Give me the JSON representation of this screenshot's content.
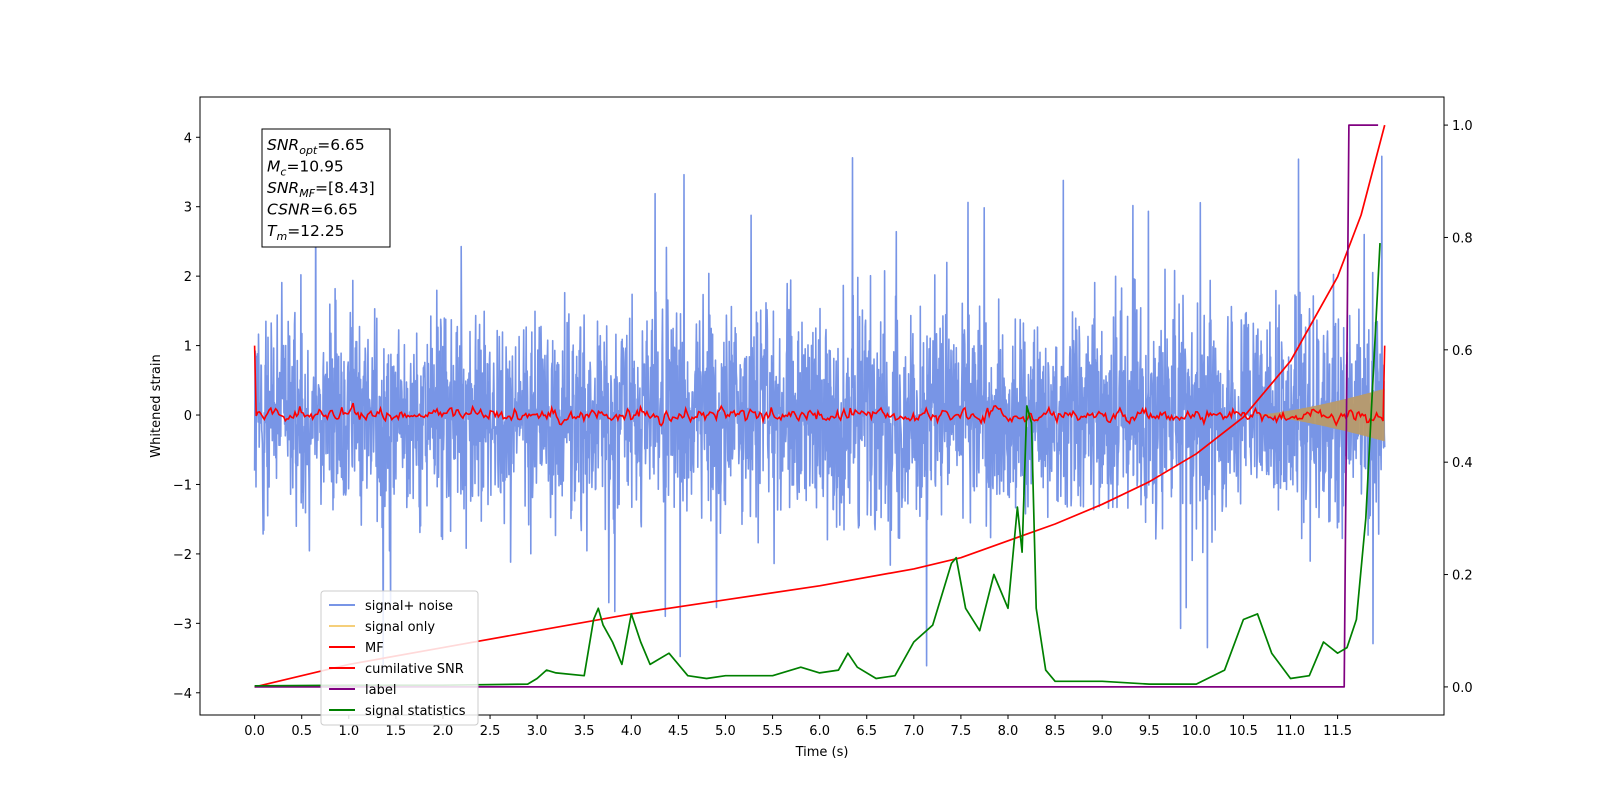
{
  "chart_data": {
    "type": "line",
    "xlabel": "Time (s)",
    "ylabel": "Whitened strain",
    "xlim": [
      -0.58,
      12.63
    ],
    "ylim": [
      -4.32,
      4.58
    ],
    "ylim_right": [
      -0.05,
      1.05
    ],
    "x_ticks": [
      "0.0",
      "0.5",
      "1.0",
      "1.5",
      "2.0",
      "2.5",
      "3.0",
      "3.5",
      "4.0",
      "4.5",
      "5.0",
      "5.5",
      "6.0",
      "6.5",
      "7.0",
      "7.5",
      "8.0",
      "8.5",
      "9.0",
      "9.5",
      "10.0",
      "10.5",
      "11.0",
      "11.5"
    ],
    "y_ticks": [
      "4",
      "3",
      "2",
      "1",
      "0",
      "−1",
      "−2",
      "−3",
      "−4"
    ],
    "y_ticks_right": [
      "1.0",
      "0.8",
      "0.6",
      "0.4",
      "0.2",
      "0.0"
    ],
    "legend_position": "lower-left",
    "annotation": {
      "lines": [
        {
          "sym": "SNR",
          "sub": "opt",
          "value": "=6.65"
        },
        {
          "sym": "M",
          "sub": "c",
          "value": "=10.95"
        },
        {
          "sym": "SNR",
          "sub": "MF",
          "value": "=[8.43]"
        },
        {
          "sym": "CSNR",
          "sub": "",
          "value": "=6.65"
        },
        {
          "sym": "T",
          "sub": "m",
          "value": "=12.25"
        }
      ]
    },
    "series": [
      {
        "name": "signal+ noise",
        "color": "#7895e6",
        "axis": "left",
        "x_range": [
          0.0,
          12.0
        ],
        "y_band": [
          -2.0,
          2.4
        ],
        "y_extremes": [
          -3.8,
          3.9
        ]
      },
      {
        "name": "signal only",
        "color": "#f5cf7a",
        "fill_color": "#b89a6a",
        "axis": "left",
        "x_range": [
          0.0,
          12.0
        ],
        "envelope_start": 10.6,
        "envelope_end_amplitude": 0.38
      },
      {
        "name": "MF",
        "color": "#ff0000",
        "axis": "left",
        "x_range": [
          0.0,
          12.0
        ],
        "baseline": 0.0,
        "noise_amplitude": 0.15,
        "start_value": 1.0,
        "end_value": 1.0
      },
      {
        "name": "cumilative SNR",
        "color": "#ff0000",
        "axis": "right",
        "x": [
          0.0,
          1.0,
          2.0,
          3.0,
          4.0,
          5.0,
          6.0,
          7.0,
          7.5,
          8.0,
          8.5,
          9.0,
          9.5,
          10.0,
          10.5,
          11.0,
          11.5,
          11.75,
          12.0
        ],
        "y": [
          0.0,
          0.04,
          0.07,
          0.1,
          0.13,
          0.155,
          0.18,
          0.21,
          0.23,
          0.26,
          0.29,
          0.325,
          0.365,
          0.415,
          0.48,
          0.58,
          0.73,
          0.84,
          1.0
        ]
      },
      {
        "name": "label",
        "color": "#800080",
        "axis": "right",
        "x": [
          0.0,
          11.57,
          11.62,
          11.93
        ],
        "y": [
          0.0,
          0.0,
          1.0,
          1.0
        ]
      },
      {
        "name": "signal statistics",
        "color": "#008000",
        "axis": "right",
        "x": [
          0.0,
          1.0,
          2.0,
          2.9,
          3.0,
          3.1,
          3.2,
          3.5,
          3.6,
          3.65,
          3.7,
          3.8,
          3.9,
          4.0,
          4.1,
          4.2,
          4.4,
          4.6,
          4.8,
          5.0,
          5.5,
          5.8,
          6.0,
          6.2,
          6.3,
          6.4,
          6.6,
          6.8,
          7.0,
          7.2,
          7.4,
          7.45,
          7.55,
          7.7,
          7.85,
          8.0,
          8.1,
          8.15,
          8.2,
          8.25,
          8.3,
          8.4,
          8.5,
          8.6,
          9.0,
          9.5,
          10.0,
          10.3,
          10.5,
          10.65,
          10.8,
          11.0,
          11.2,
          11.35,
          11.5,
          11.6,
          11.7,
          11.8,
          11.95
        ],
        "y": [
          0.002,
          0.003,
          0.003,
          0.005,
          0.015,
          0.03,
          0.025,
          0.02,
          0.12,
          0.14,
          0.11,
          0.08,
          0.04,
          0.13,
          0.08,
          0.04,
          0.06,
          0.02,
          0.015,
          0.02,
          0.02,
          0.035,
          0.025,
          0.03,
          0.06,
          0.035,
          0.015,
          0.02,
          0.08,
          0.11,
          0.22,
          0.23,
          0.14,
          0.1,
          0.2,
          0.14,
          0.32,
          0.24,
          0.5,
          0.47,
          0.14,
          0.03,
          0.01,
          0.01,
          0.01,
          0.005,
          0.005,
          0.03,
          0.12,
          0.13,
          0.06,
          0.015,
          0.02,
          0.08,
          0.06,
          0.07,
          0.12,
          0.3,
          0.79
        ]
      }
    ]
  }
}
